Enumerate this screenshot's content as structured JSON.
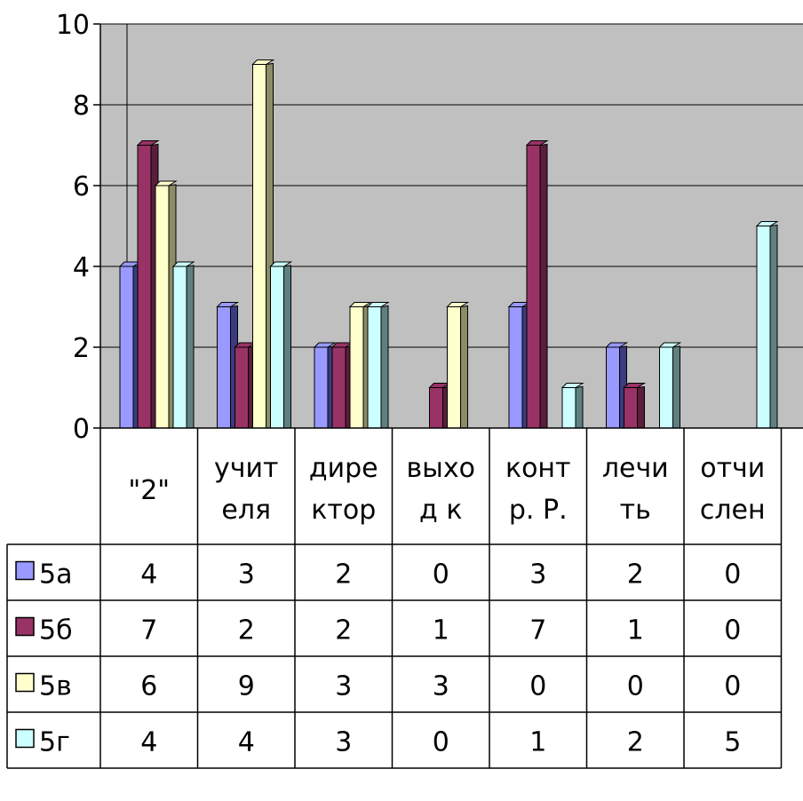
{
  "chart_data": {
    "type": "bar",
    "categories": [
      [
        "\"2\""
      ],
      [
        "учит",
        "еля"
      ],
      [
        "дире",
        "ктор"
      ],
      [
        "выхо",
        "д к"
      ],
      [
        "конт",
        "р. Р."
      ],
      [
        "лечи",
        "ть"
      ],
      [
        "отчи",
        "слен"
      ]
    ],
    "series": [
      {
        "name": "5а",
        "values": [
          4,
          3,
          2,
          0,
          3,
          2,
          0
        ],
        "color": "#9999ff",
        "side_color": "#3b3b80"
      },
      {
        "name": "5б",
        "values": [
          7,
          2,
          2,
          1,
          7,
          1,
          0
        ],
        "color": "#993366",
        "side_color": "#5a1d3b"
      },
      {
        "name": "5в",
        "values": [
          6,
          9,
          3,
          3,
          0,
          0,
          0
        ],
        "color": "#ffffcc",
        "side_color": "#8c8c66"
      },
      {
        "name": "5г",
        "values": [
          4,
          4,
          3,
          0,
          1,
          2,
          5
        ],
        "color": "#ccffff",
        "side_color": "#5e8080"
      }
    ],
    "y_ticks": [
      "0",
      "2",
      "4",
      "6",
      "8",
      "10"
    ],
    "ylim": [
      0,
      10
    ],
    "grid": true,
    "plot_background": "#c0c0c0",
    "legend": "data-table-left"
  }
}
